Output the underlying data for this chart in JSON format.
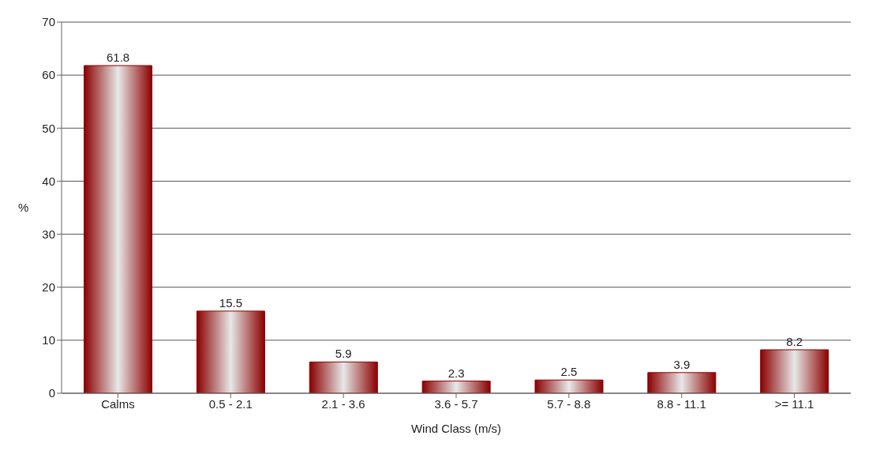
{
  "chart_data": {
    "type": "bar",
    "xlabel": "Wind Class (m/s)",
    "ylabel": "%",
    "categories": [
      "Calms",
      "0.5 - 2.1",
      "2.1 - 3.6",
      "3.6 - 5.7",
      "5.7 - 8.8",
      "8.8 - 11.1",
      ">= 11.1"
    ],
    "values": [
      61.8,
      15.5,
      5.9,
      2.3,
      2.5,
      3.9,
      8.2
    ],
    "color": "#8b0000",
    "ylim": [
      0,
      70
    ],
    "yticks": [
      0,
      10,
      20,
      30,
      40,
      50,
      60,
      70
    ],
    "grid": "y",
    "data_labels": true
  }
}
